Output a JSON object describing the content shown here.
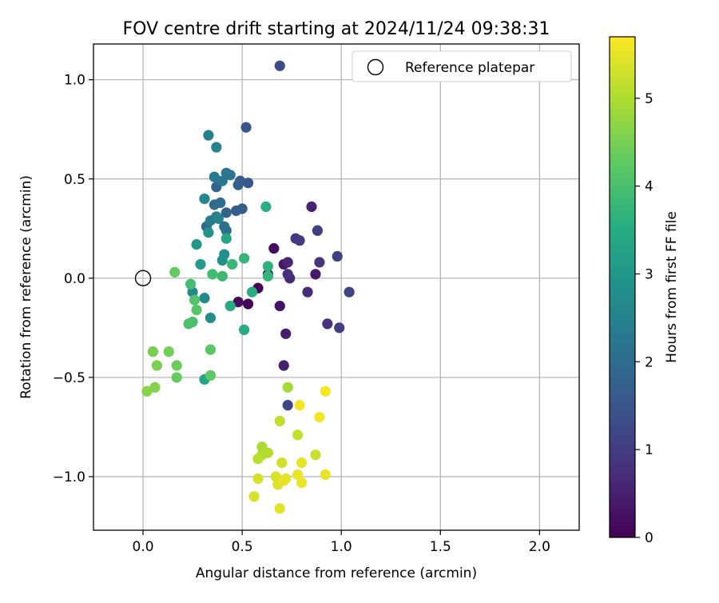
{
  "chart_data": {
    "type": "scatter",
    "title": "FOV centre drift starting at 2024/11/24 09:38:31",
    "xlabel": "Angular distance from reference (arcmin)",
    "ylabel": "Rotation from reference (arcmin)",
    "xlim": [
      -0.25,
      2.2
    ],
    "ylim": [
      -1.27,
      1.18
    ],
    "xticks": [
      0.0,
      0.5,
      1.0,
      1.5,
      2.0
    ],
    "xtick_labels": [
      "0.0",
      "0.5",
      "1.0",
      "1.5",
      "2.0"
    ],
    "yticks": [
      1.0,
      0.5,
      0.0,
      -0.5,
      -1.0
    ],
    "ytick_labels": [
      "1.0",
      "0.5",
      "0.0",
      "−0.5",
      "−1.0"
    ],
    "grid": true,
    "legend": {
      "position": "top-right",
      "entries": [
        "Reference platepar"
      ]
    },
    "reference_point": {
      "x": 0.0,
      "y": 0.0,
      "marker": "open-circle"
    },
    "colorbar": {
      "label": "Hours from first FF file",
      "range": [
        0,
        5.7
      ],
      "ticks": [
        0,
        1,
        2,
        3,
        4,
        5
      ],
      "tick_labels": [
        "0",
        "1",
        "2",
        "3",
        "4",
        "5"
      ],
      "colormap": "viridis"
    },
    "points": [
      {
        "x": 0.58,
        "y": -0.05,
        "c": 0.05
      },
      {
        "x": 0.53,
        "y": -0.13,
        "c": 0.1
      },
      {
        "x": 0.48,
        "y": -0.12,
        "c": 0.15
      },
      {
        "x": 0.66,
        "y": 0.15,
        "c": 0.2
      },
      {
        "x": 0.63,
        "y": 0.02,
        "c": 0.25
      },
      {
        "x": 0.69,
        "y": -0.14,
        "c": 0.3
      },
      {
        "x": 0.71,
        "y": 0.07,
        "c": 0.35
      },
      {
        "x": 0.87,
        "y": 0.02,
        "c": 0.4
      },
      {
        "x": 0.72,
        "y": -0.28,
        "c": 0.45
      },
      {
        "x": 0.71,
        "y": -0.44,
        "c": 0.5
      },
      {
        "x": 0.85,
        "y": 0.36,
        "c": 0.55
      },
      {
        "x": 0.73,
        "y": 0.08,
        "c": 0.6
      },
      {
        "x": 0.74,
        "y": 0.0,
        "c": 0.65
      },
      {
        "x": 0.83,
        "y": -0.07,
        "c": 0.7
      },
      {
        "x": 0.73,
        "y": 0.02,
        "c": 0.75
      },
      {
        "x": 0.93,
        "y": -0.23,
        "c": 0.8
      },
      {
        "x": 0.89,
        "y": 0.08,
        "c": 0.85
      },
      {
        "x": 0.77,
        "y": 0.2,
        "c": 0.9
      },
      {
        "x": 0.79,
        "y": 0.19,
        "c": 0.95
      },
      {
        "x": 0.88,
        "y": 0.24,
        "c": 1.0
      },
      {
        "x": 0.99,
        "y": -0.25,
        "c": 1.05
      },
      {
        "x": 0.98,
        "y": 0.11,
        "c": 1.1
      },
      {
        "x": 1.04,
        "y": -0.07,
        "c": 1.15
      },
      {
        "x": 0.73,
        "y": -0.64,
        "c": 1.2
      },
      {
        "x": 0.69,
        "y": 1.07,
        "c": 1.3
      },
      {
        "x": 0.52,
        "y": 0.76,
        "c": 1.5
      },
      {
        "x": 0.53,
        "y": 0.48,
        "c": 1.55
      },
      {
        "x": 0.49,
        "y": 0.49,
        "c": 1.6
      },
      {
        "x": 0.5,
        "y": 0.35,
        "c": 1.65
      },
      {
        "x": 0.47,
        "y": 0.34,
        "c": 1.7
      },
      {
        "x": 0.48,
        "y": 0.47,
        "c": 1.75
      },
      {
        "x": 0.42,
        "y": 0.33,
        "c": 1.8
      },
      {
        "x": 0.37,
        "y": 0.46,
        "c": 1.85
      },
      {
        "x": 0.32,
        "y": 0.26,
        "c": 1.9
      },
      {
        "x": 0.36,
        "y": 0.37,
        "c": 1.95
      },
      {
        "x": 0.39,
        "y": 0.38,
        "c": 2.0
      },
      {
        "x": 0.41,
        "y": 0.26,
        "c": 2.05
      },
      {
        "x": 0.42,
        "y": 0.24,
        "c": 2.1
      },
      {
        "x": 0.42,
        "y": 0.53,
        "c": 2.15
      },
      {
        "x": 0.44,
        "y": 0.52,
        "c": 2.2
      },
      {
        "x": 0.4,
        "y": 0.49,
        "c": 2.25
      },
      {
        "x": 0.36,
        "y": 0.51,
        "c": 2.3
      },
      {
        "x": 0.37,
        "y": 0.31,
        "c": 2.35
      },
      {
        "x": 0.34,
        "y": 0.29,
        "c": 2.4
      },
      {
        "x": 0.33,
        "y": 0.72,
        "c": 2.45
      },
      {
        "x": 0.37,
        "y": 0.66,
        "c": 2.5
      },
      {
        "x": 0.38,
        "y": 0.3,
        "c": 2.55
      },
      {
        "x": 0.31,
        "y": 0.4,
        "c": 2.6
      },
      {
        "x": 0.25,
        "y": -0.07,
        "c": 2.65
      },
      {
        "x": 0.31,
        "y": -0.1,
        "c": 2.7
      },
      {
        "x": 0.34,
        "y": -0.2,
        "c": 2.75
      },
      {
        "x": 0.41,
        "y": 0.12,
        "c": 2.8
      },
      {
        "x": 0.4,
        "y": 0.09,
        "c": 2.85
      },
      {
        "x": 0.33,
        "y": 0.23,
        "c": 2.9
      },
      {
        "x": 0.27,
        "y": 0.17,
        "c": 3.0
      },
      {
        "x": 0.29,
        "y": 0.07,
        "c": 3.1
      },
      {
        "x": 0.31,
        "y": -0.51,
        "c": 3.3
      },
      {
        "x": 0.42,
        "y": 0.2,
        "c": 3.4
      },
      {
        "x": 0.44,
        "y": -0.14,
        "c": 3.45
      },
      {
        "x": 0.51,
        "y": -0.26,
        "c": 3.5
      },
      {
        "x": 0.55,
        "y": -0.07,
        "c": 3.55
      },
      {
        "x": 0.62,
        "y": 0.36,
        "c": 3.6
      },
      {
        "x": 0.63,
        "y": 0.06,
        "c": 3.65
      },
      {
        "x": 0.63,
        "y": 0.01,
        "c": 3.7
      },
      {
        "x": 0.51,
        "y": 0.1,
        "c": 3.75
      },
      {
        "x": 0.45,
        "y": 0.07,
        "c": 3.8
      },
      {
        "x": 0.4,
        "y": 0.01,
        "c": 3.85
      },
      {
        "x": 0.35,
        "y": 0.02,
        "c": 3.9
      },
      {
        "x": 0.24,
        "y": -0.03,
        "c": 3.95
      },
      {
        "x": 0.25,
        "y": -0.22,
        "c": 4.0
      },
      {
        "x": 0.23,
        "y": -0.23,
        "c": 4.05
      },
      {
        "x": 0.26,
        "y": -0.11,
        "c": 4.1
      },
      {
        "x": 0.27,
        "y": -0.16,
        "c": 4.15
      },
      {
        "x": 0.34,
        "y": -0.36,
        "c": 4.2
      },
      {
        "x": 0.34,
        "y": -0.49,
        "c": 4.25
      },
      {
        "x": 0.16,
        "y": 0.03,
        "c": 4.3
      },
      {
        "x": 0.17,
        "y": -0.5,
        "c": 4.35
      },
      {
        "x": 0.17,
        "y": -0.44,
        "c": 4.4
      },
      {
        "x": 0.13,
        "y": -0.37,
        "c": 4.45
      },
      {
        "x": 0.05,
        "y": -0.37,
        "c": 4.5
      },
      {
        "x": 0.07,
        "y": -0.44,
        "c": 4.55
      },
      {
        "x": 0.06,
        "y": -0.55,
        "c": 4.6
      },
      {
        "x": 0.02,
        "y": -0.57,
        "c": 4.65
      },
      {
        "x": 0.73,
        "y": -0.55,
        "c": 4.9
      },
      {
        "x": 0.6,
        "y": -0.85,
        "c": 4.95
      },
      {
        "x": 0.6,
        "y": -0.89,
        "c": 5.0
      },
      {
        "x": 0.63,
        "y": -0.88,
        "c": 5.05
      },
      {
        "x": 0.58,
        "y": -0.91,
        "c": 5.1
      },
      {
        "x": 0.69,
        "y": -0.72,
        "c": 5.15
      },
      {
        "x": 0.78,
        "y": -0.79,
        "c": 5.2
      },
      {
        "x": 0.87,
        "y": -0.89,
        "c": 5.25
      },
      {
        "x": 0.7,
        "y": -0.93,
        "c": 5.3
      },
      {
        "x": 0.58,
        "y": -1.01,
        "c": 5.35
      },
      {
        "x": 0.56,
        "y": -1.1,
        "c": 5.35
      },
      {
        "x": 0.67,
        "y": -1.0,
        "c": 5.4
      },
      {
        "x": 0.68,
        "y": -1.04,
        "c": 5.4
      },
      {
        "x": 0.69,
        "y": -1.16,
        "c": 5.45
      },
      {
        "x": 0.72,
        "y": -1.01,
        "c": 5.45
      },
      {
        "x": 0.71,
        "y": -1.02,
        "c": 5.5
      },
      {
        "x": 0.8,
        "y": -0.93,
        "c": 5.5
      },
      {
        "x": 0.92,
        "y": -0.99,
        "c": 5.5
      },
      {
        "x": 0.78,
        "y": -0.99,
        "c": 5.55
      },
      {
        "x": 0.8,
        "y": -1.03,
        "c": 5.55
      },
      {
        "x": 0.79,
        "y": -0.64,
        "c": 5.6
      },
      {
        "x": 0.89,
        "y": -0.7,
        "c": 5.6
      },
      {
        "x": 0.92,
        "y": -0.57,
        "c": 5.65
      }
    ]
  }
}
